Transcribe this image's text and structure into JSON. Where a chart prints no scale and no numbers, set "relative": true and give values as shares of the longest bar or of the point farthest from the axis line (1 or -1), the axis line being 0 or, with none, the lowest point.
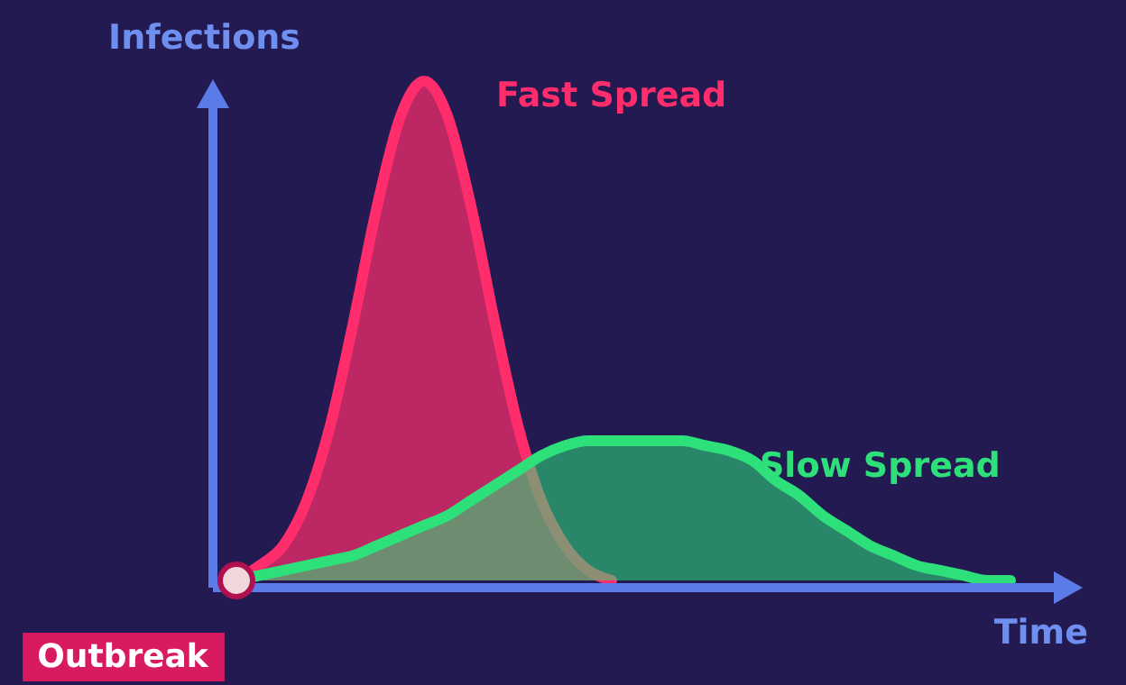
{
  "chart_data": {
    "type": "area",
    "relative": true,
    "xlabel": "Time",
    "ylabel": "Infections",
    "categories": [
      null,
      null,
      null,
      null,
      null,
      null,
      null,
      null,
      null,
      null,
      null,
      null,
      null,
      null,
      null,
      null,
      null,
      null,
      null,
      null,
      null,
      null,
      null,
      null,
      null,
      null,
      null,
      null,
      null,
      null,
      null,
      null,
      null,
      null
    ],
    "series": [
      {
        "name": "Fast Spread",
        "color": "#ff2d6b",
        "values": [
          0,
          0.03,
          0.07,
          0.16,
          0.31,
          0.52,
          0.75,
          0.93,
          1,
          0.93,
          0.75,
          0.52,
          0.31,
          0.16,
          0.07,
          0.02,
          0,
          null,
          null,
          null,
          null,
          null,
          null,
          null,
          null,
          null,
          null,
          null,
          null,
          null,
          null,
          null,
          null,
          null
        ]
      },
      {
        "name": "Slow Spread",
        "color": "#2ee07a",
        "values": [
          0,
          0.01,
          0.02,
          0.03,
          0.04,
          0.05,
          0.07,
          0.09,
          0.11,
          0.13,
          0.16,
          0.19,
          0.22,
          0.25,
          0.27,
          0.28,
          0.28,
          0.28,
          0.28,
          0.28,
          0.27,
          0.26,
          0.24,
          0.2,
          0.17,
          0.13,
          0.1,
          0.07,
          0.05,
          0.03,
          0.02,
          0.01,
          0,
          0
        ]
      }
    ],
    "annotations": [
      "Outbreak"
    ]
  }
}
